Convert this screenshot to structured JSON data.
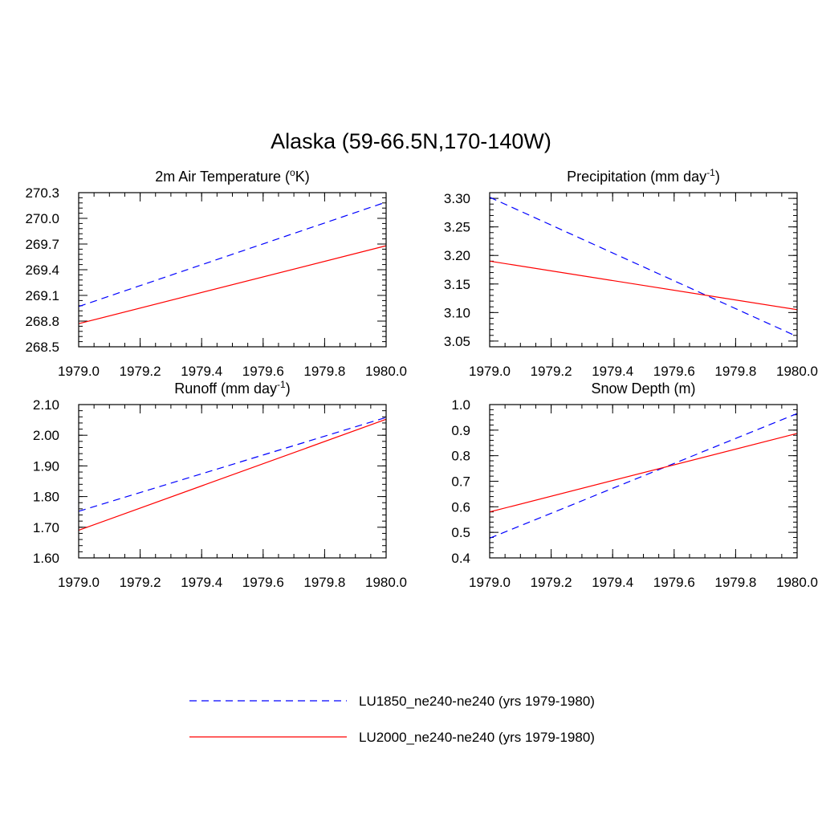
{
  "figure": {
    "title": "Alaska (59-66.5N,170-140W)"
  },
  "legend": {
    "entries": [
      {
        "label": "LU1850_ne240-ne240 (yrs 1979-1980)",
        "color": "#0000ff",
        "dash": "dashed"
      },
      {
        "label": "LU2000_ne240-ne240 (yrs 1979-1980)",
        "color": "#ff0000",
        "dash": "solid"
      }
    ]
  },
  "chart_data": [
    {
      "type": "line",
      "title": "2m Air Temperature (oK)",
      "title_parts": {
        "text": "2m Air Temperature (",
        "sup": "o",
        "after": "K)"
      },
      "xlim": [
        1979.0,
        1980.0
      ],
      "ylim": [
        268.5,
        270.3
      ],
      "x_ticks": [
        "1979.0",
        "1979.2",
        "1979.4",
        "1979.6",
        "1979.8",
        "1980.0"
      ],
      "y_ticks": [
        "268.5",
        "268.8",
        "269.1",
        "269.4",
        "269.7",
        "270.0",
        "270.3"
      ],
      "series": [
        {
          "name": "LU1850_ne240-ne240 (yrs 1979-1980)",
          "x": [
            1979.0,
            1980.0
          ],
          "y": [
            268.97,
            270.19
          ]
        },
        {
          "name": "LU2000_ne240-ne240 (yrs 1979-1980)",
          "x": [
            1979.0,
            1980.0
          ],
          "y": [
            268.77,
            269.68
          ]
        }
      ]
    },
    {
      "type": "line",
      "title": "Precipitation (mm day-1)",
      "title_parts": {
        "text": "Precipitation (mm day",
        "sup": "-1",
        "after": ")"
      },
      "xlim": [
        1979.0,
        1980.0
      ],
      "ylim": [
        3.04,
        3.31
      ],
      "x_ticks": [
        "1979.0",
        "1979.2",
        "1979.4",
        "1979.6",
        "1979.8",
        "1980.0"
      ],
      "y_ticks": [
        "3.05",
        "3.10",
        "3.15",
        "3.20",
        "3.25",
        "3.30"
      ],
      "series": [
        {
          "name": "LU1850_ne240-ne240 (yrs 1979-1980)",
          "x": [
            1979.0,
            1980.0
          ],
          "y": [
            3.302,
            3.058
          ]
        },
        {
          "name": "LU2000_ne240-ne240 (yrs 1979-1980)",
          "x": [
            1979.0,
            1980.0
          ],
          "y": [
            3.19,
            3.105
          ]
        }
      ]
    },
    {
      "type": "line",
      "title": "Runoff (mm day-1)",
      "title_parts": {
        "text": "Runoff (mm day",
        "sup": "-1",
        "after": ")"
      },
      "xlim": [
        1979.0,
        1980.0
      ],
      "ylim": [
        1.6,
        2.1
      ],
      "x_ticks": [
        "1979.0",
        "1979.2",
        "1979.4",
        "1979.6",
        "1979.8",
        "1980.0"
      ],
      "y_ticks": [
        "1.60",
        "1.70",
        "1.80",
        "1.90",
        "2.00",
        "2.10"
      ],
      "series": [
        {
          "name": "LU1850_ne240-ne240 (yrs 1979-1980)",
          "x": [
            1979.0,
            1980.0
          ],
          "y": [
            1.752,
            2.058
          ]
        },
        {
          "name": "LU2000_ne240-ne240 (yrs 1979-1980)",
          "x": [
            1979.0,
            1980.0
          ],
          "y": [
            1.69,
            2.052
          ]
        }
      ]
    },
    {
      "type": "line",
      "title": "Snow Depth (m)",
      "title_parts": {
        "text": "Snow Depth (m)",
        "sup": "",
        "after": ""
      },
      "xlim": [
        1979.0,
        1980.0
      ],
      "ylim": [
        0.4,
        1.0
      ],
      "x_ticks": [
        "1979.0",
        "1979.2",
        "1979.4",
        "1979.6",
        "1979.8",
        "1980.0"
      ],
      "y_ticks": [
        "0.4",
        "0.5",
        "0.6",
        "0.7",
        "0.8",
        "0.9",
        "1.0"
      ],
      "series": [
        {
          "name": "LU1850_ne240-ne240 (yrs 1979-1980)",
          "x": [
            1979.0,
            1980.0
          ],
          "y": [
            0.477,
            0.965
          ]
        },
        {
          "name": "LU2000_ne240-ne240 (yrs 1979-1980)",
          "x": [
            1979.0,
            1980.0
          ],
          "y": [
            0.58,
            0.887
          ]
        }
      ]
    }
  ]
}
